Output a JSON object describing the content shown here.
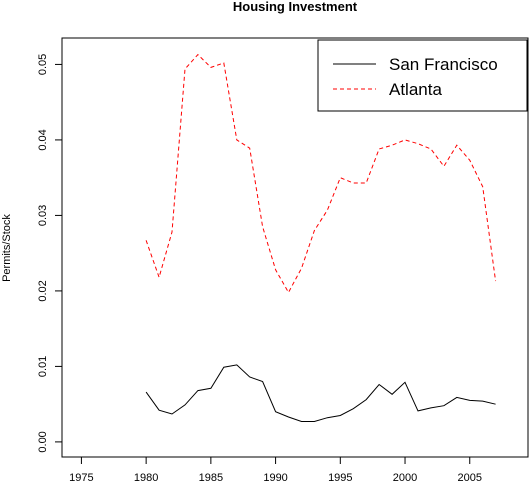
{
  "chart_data": {
    "type": "line",
    "title": "Housing Investment",
    "xlabel": "",
    "ylabel": "Permits/Stock",
    "xlim": [
      1973.5,
      2009.5
    ],
    "ylim": [
      -0.002,
      0.0535
    ],
    "x_ticks": [
      "1975",
      "1980",
      "1985",
      "1990",
      "1995",
      "2000",
      "2005"
    ],
    "y_ticks": [
      "0.00",
      "0.01",
      "0.02",
      "0.03",
      "0.04",
      "0.05"
    ],
    "grid": false,
    "legend_position": "top-right",
    "series": [
      {
        "name": "San Francisco",
        "color": "#000000",
        "dash": "solid",
        "x": [
          1980,
          1981,
          1982,
          1983,
          1984,
          1985,
          1986,
          1987,
          1988,
          1989,
          1990,
          1991,
          1992,
          1993,
          1994,
          1995,
          1996,
          1997,
          1998,
          1999,
          2000,
          2001,
          2002,
          2003,
          2004,
          2005,
          2006,
          2007
        ],
        "values": [
          0.0066,
          0.0042,
          0.0037,
          0.0049,
          0.0068,
          0.0071,
          0.0099,
          0.0102,
          0.0086,
          0.008,
          0.004,
          0.0033,
          0.0027,
          0.0027,
          0.0032,
          0.0035,
          0.0044,
          0.0056,
          0.0076,
          0.0063,
          0.0079,
          0.0041,
          0.0045,
          0.0048,
          0.0059,
          0.0055,
          0.0054,
          0.005
        ]
      },
      {
        "name": "Atlanta",
        "color": "#ff0000",
        "dash": "dashed",
        "x": [
          1980,
          1981,
          1982,
          1983,
          1984,
          1985,
          1986,
          1987,
          1988,
          1989,
          1990,
          1991,
          1992,
          1993,
          1994,
          1995,
          1996,
          1997,
          1998,
          1999,
          2000,
          2001,
          2002,
          2003,
          2004,
          2005,
          2006,
          2007
        ],
        "values": [
          0.0267,
          0.0218,
          0.0278,
          0.0494,
          0.0513,
          0.0496,
          0.0502,
          0.04,
          0.0389,
          0.0285,
          0.0228,
          0.0198,
          0.023,
          0.028,
          0.0307,
          0.035,
          0.0343,
          0.0343,
          0.0388,
          0.0393,
          0.04,
          0.0395,
          0.0388,
          0.0365,
          0.0393,
          0.0373,
          0.0338,
          0.0213
        ]
      }
    ]
  }
}
